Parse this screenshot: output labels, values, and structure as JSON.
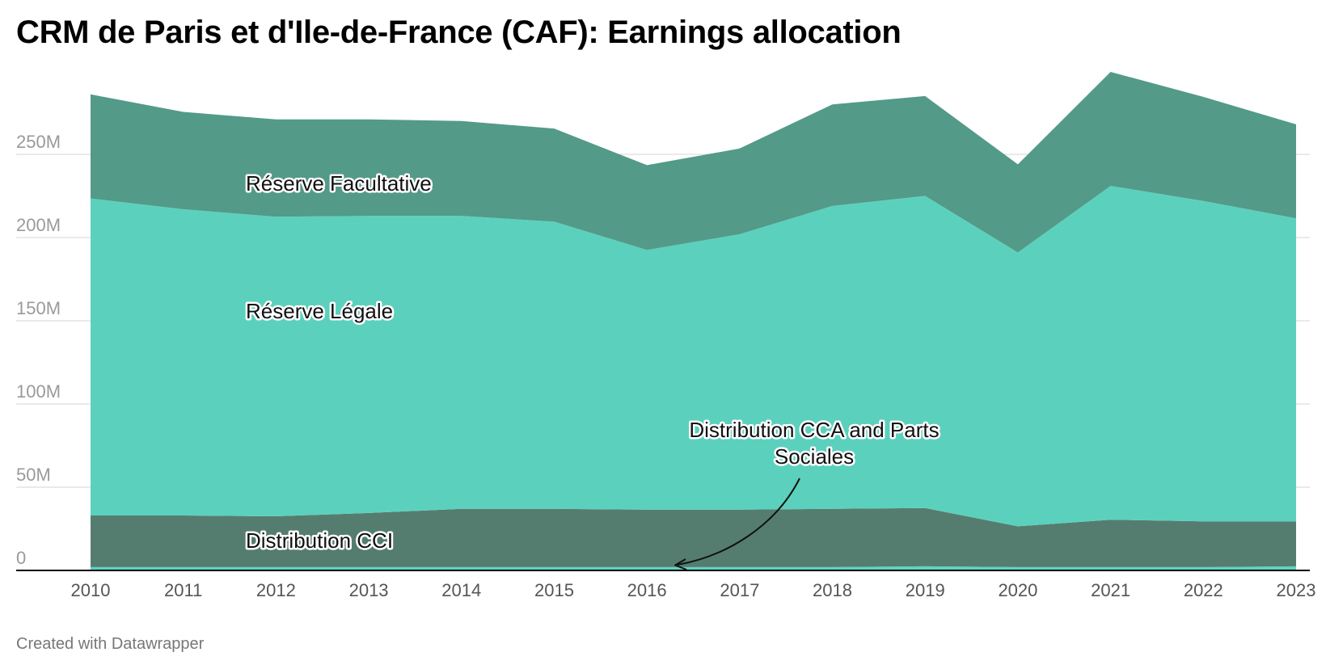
{
  "title": "CRM de Paris et d'Ile-de-France (CAF): Earnings allocation",
  "credit": "Created with Datawrapper",
  "colors": {
    "distribution_cca": "#5dd3bf",
    "distribution_cci": "#557d6f",
    "reserve_legale": "#5bd1bd",
    "reserve_facultative": "#539a89"
  },
  "chart_data": {
    "type": "area",
    "stacked": true,
    "title": "CRM de Paris et d'Ile-de-France (CAF): Earnings allocation",
    "xlabel": "",
    "ylabel": "",
    "x": [
      2010,
      2011,
      2012,
      2013,
      2014,
      2015,
      2016,
      2017,
      2018,
      2019,
      2020,
      2021,
      2022,
      2023
    ],
    "x_tick_labels": [
      "2010",
      "2011",
      "2012",
      "2013",
      "2014",
      "2015",
      "2016",
      "2017",
      "2018",
      "2019",
      "2020",
      "2021",
      "2022",
      "2023"
    ],
    "ylim": [
      0,
      300
    ],
    "y_unit": "M",
    "y_ticks": [
      0,
      50,
      100,
      150,
      200,
      250
    ],
    "y_tick_labels": [
      "0",
      "50M",
      "100M",
      "150M",
      "200M",
      "250M"
    ],
    "grid": true,
    "series": [
      {
        "name": "Distribution CCA and Parts Sociales",
        "color_key": "distribution_cca",
        "values": [
          2,
          2,
          2,
          2,
          2,
          2,
          2,
          2,
          2,
          2.5,
          2,
          2,
          2,
          2.5
        ]
      },
      {
        "name": "Distribution CCI",
        "color_key": "distribution_cci",
        "values": [
          31,
          31,
          30.5,
          32.5,
          35,
          35,
          34.5,
          34.5,
          35,
          35,
          24.5,
          28.5,
          27.5,
          27
        ]
      },
      {
        "name": "Réserve Légale",
        "color_key": "reserve_legale",
        "values": [
          190.5,
          184,
          180,
          178.5,
          176,
          172.5,
          156,
          165.5,
          182,
          187.5,
          164.5,
          200.5,
          192.5,
          182
        ]
      },
      {
        "name": "Réserve Facultative",
        "color_key": "reserve_facultative",
        "values": [
          62.5,
          58.5,
          58.5,
          58,
          57,
          56,
          51,
          51.5,
          61,
          60,
          53,
          68.5,
          62.5,
          56.5
        ]
      }
    ],
    "annotations": {
      "reserve_facultative": "Réserve Facultative",
      "reserve_legale": "Réserve Légale",
      "distribution_cci": "Distribution CCI",
      "distribution_cca_line1": "Distribution CCA and Parts",
      "distribution_cca_line2": "Sociales"
    }
  }
}
